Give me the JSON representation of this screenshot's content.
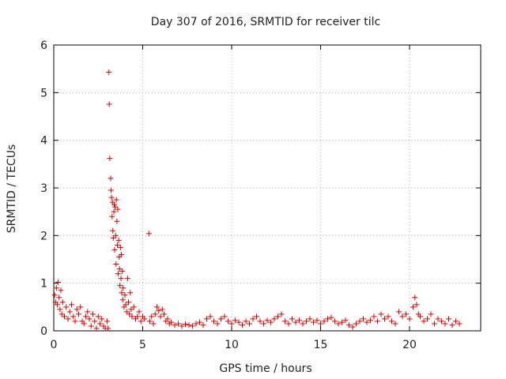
{
  "chart_data": {
    "type": "scatter",
    "title": "Day 307 of 2016, SRMTID for receiver tilc",
    "xlabel": "GPS time / hours",
    "ylabel": "SRMTID / TECUs",
    "xlim": [
      0,
      24
    ],
    "ylim": [
      0,
      6
    ],
    "xticks": [
      0,
      5,
      10,
      15,
      20
    ],
    "yticks": [
      0,
      1,
      2,
      3,
      4,
      5,
      6
    ],
    "grid": true,
    "marker": "+",
    "marker_color": "#dd0000",
    "series": [
      {
        "name": "tilc",
        "points": [
          [
            0.05,
            0.75
          ],
          [
            0.1,
            0.6
          ],
          [
            0.15,
            0.9
          ],
          [
            0.2,
            0.55
          ],
          [
            0.25,
            1.02
          ],
          [
            0.3,
            0.7
          ],
          [
            0.35,
            0.45
          ],
          [
            0.4,
            0.85
          ],
          [
            0.45,
            0.35
          ],
          [
            0.5,
            0.6
          ],
          [
            0.6,
            0.3
          ],
          [
            0.7,
            0.5
          ],
          [
            0.8,
            0.25
          ],
          [
            0.9,
            0.4
          ],
          [
            1.0,
            0.55
          ],
          [
            1.1,
            0.3
          ],
          [
            1.2,
            0.2
          ],
          [
            1.3,
            0.45
          ],
          [
            1.4,
            0.35
          ],
          [
            1.5,
            0.5
          ],
          [
            1.6,
            0.2
          ],
          [
            1.7,
            0.15
          ],
          [
            1.8,
            0.3
          ],
          [
            1.9,
            0.4
          ],
          [
            2.0,
            0.25
          ],
          [
            2.1,
            0.1
          ],
          [
            2.2,
            0.35
          ],
          [
            2.3,
            0.2
          ],
          [
            2.4,
            0.05
          ],
          [
            2.5,
            0.3
          ],
          [
            2.6,
            0.15
          ],
          [
            2.7,
            0.25
          ],
          [
            2.8,
            0.1
          ],
          [
            2.9,
            0.05
          ],
          [
            3.0,
            0.2
          ],
          [
            3.05,
            0.05
          ],
          [
            3.1,
            5.43
          ],
          [
            3.12,
            4.76
          ],
          [
            3.15,
            3.62
          ],
          [
            3.2,
            3.2
          ],
          [
            3.22,
            2.95
          ],
          [
            3.25,
            2.8
          ],
          [
            3.28,
            2.4
          ],
          [
            3.3,
            2.7
          ],
          [
            3.32,
            2.1
          ],
          [
            3.35,
            1.95
          ],
          [
            3.38,
            2.5
          ],
          [
            3.4,
            2.65
          ],
          [
            3.42,
            1.7
          ],
          [
            3.45,
            2.6
          ],
          [
            3.48,
            2.0
          ],
          [
            3.5,
            1.4
          ],
          [
            3.52,
            2.75
          ],
          [
            3.55,
            2.3
          ],
          [
            3.58,
            1.8
          ],
          [
            3.6,
            2.55
          ],
          [
            3.62,
            1.2
          ],
          [
            3.65,
            1.9
          ],
          [
            3.68,
            1.55
          ],
          [
            3.7,
            1.3
          ],
          [
            3.72,
            0.95
          ],
          [
            3.75,
            1.75
          ],
          [
            3.78,
            1.1
          ],
          [
            3.8,
            1.6
          ],
          [
            3.82,
            0.8
          ],
          [
            3.85,
            1.25
          ],
          [
            3.88,
            0.65
          ],
          [
            3.9,
            0.9
          ],
          [
            3.95,
            0.5
          ],
          [
            4.0,
            0.75
          ],
          [
            4.05,
            0.55
          ],
          [
            4.1,
            0.4
          ],
          [
            4.15,
            1.1
          ],
          [
            4.2,
            0.6
          ],
          [
            4.25,
            0.35
          ],
          [
            4.3,
            0.8
          ],
          [
            4.35,
            0.45
          ],
          [
            4.4,
            0.3
          ],
          [
            4.5,
            0.5
          ],
          [
            4.6,
            0.25
          ],
          [
            4.7,
            0.3
          ],
          [
            4.8,
            0.4
          ],
          [
            4.9,
            0.2
          ],
          [
            5.0,
            0.3
          ],
          [
            5.1,
            0.25
          ],
          [
            5.35,
            2.04
          ],
          [
            5.4,
            0.2
          ],
          [
            5.5,
            0.3
          ],
          [
            5.6,
            0.15
          ],
          [
            5.7,
            0.35
          ],
          [
            5.8,
            0.5
          ],
          [
            5.9,
            0.42
          ],
          [
            6.0,
            0.3
          ],
          [
            6.1,
            0.45
          ],
          [
            6.2,
            0.35
          ],
          [
            6.3,
            0.2
          ],
          [
            6.4,
            0.25
          ],
          [
            6.5,
            0.15
          ],
          [
            6.6,
            0.18
          ],
          [
            6.8,
            0.12
          ],
          [
            7.0,
            0.15
          ],
          [
            7.2,
            0.1
          ],
          [
            7.4,
            0.14
          ],
          [
            7.6,
            0.12
          ],
          [
            7.8,
            0.1
          ],
          [
            8.0,
            0.15
          ],
          [
            8.2,
            0.18
          ],
          [
            8.4,
            0.12
          ],
          [
            8.6,
            0.25
          ],
          [
            8.8,
            0.3
          ],
          [
            9.0,
            0.2
          ],
          [
            9.2,
            0.15
          ],
          [
            9.4,
            0.25
          ],
          [
            9.6,
            0.3
          ],
          [
            9.8,
            0.2
          ],
          [
            10.0,
            0.15
          ],
          [
            10.2,
            0.22
          ],
          [
            10.4,
            0.18
          ],
          [
            10.6,
            0.12
          ],
          [
            10.8,
            0.2
          ],
          [
            11.0,
            0.15
          ],
          [
            11.2,
            0.25
          ],
          [
            11.4,
            0.3
          ],
          [
            11.6,
            0.2
          ],
          [
            11.8,
            0.15
          ],
          [
            12.0,
            0.22
          ],
          [
            12.2,
            0.18
          ],
          [
            12.4,
            0.25
          ],
          [
            12.6,
            0.3
          ],
          [
            12.8,
            0.35
          ],
          [
            13.0,
            0.2
          ],
          [
            13.2,
            0.15
          ],
          [
            13.4,
            0.25
          ],
          [
            13.6,
            0.18
          ],
          [
            13.8,
            0.22
          ],
          [
            14.0,
            0.15
          ],
          [
            14.2,
            0.2
          ],
          [
            14.4,
            0.25
          ],
          [
            14.6,
            0.18
          ],
          [
            14.8,
            0.22
          ],
          [
            15.0,
            0.15
          ],
          [
            15.2,
            0.2
          ],
          [
            15.4,
            0.25
          ],
          [
            15.6,
            0.28
          ],
          [
            15.8,
            0.2
          ],
          [
            16.0,
            0.15
          ],
          [
            16.2,
            0.18
          ],
          [
            16.4,
            0.22
          ],
          [
            16.6,
            0.12
          ],
          [
            16.8,
            0.08
          ],
          [
            17.0,
            0.15
          ],
          [
            17.2,
            0.2
          ],
          [
            17.4,
            0.25
          ],
          [
            17.6,
            0.18
          ],
          [
            17.8,
            0.22
          ],
          [
            18.0,
            0.3
          ],
          [
            18.2,
            0.2
          ],
          [
            18.4,
            0.35
          ],
          [
            18.6,
            0.25
          ],
          [
            18.8,
            0.3
          ],
          [
            19.0,
            0.2
          ],
          [
            19.2,
            0.15
          ],
          [
            19.4,
            0.4
          ],
          [
            19.6,
            0.3
          ],
          [
            19.8,
            0.35
          ],
          [
            20.0,
            0.25
          ],
          [
            20.2,
            0.5
          ],
          [
            20.3,
            0.7
          ],
          [
            20.4,
            0.55
          ],
          [
            20.5,
            0.35
          ],
          [
            20.6,
            0.3
          ],
          [
            20.8,
            0.2
          ],
          [
            21.0,
            0.25
          ],
          [
            21.2,
            0.35
          ],
          [
            21.4,
            0.15
          ],
          [
            21.6,
            0.25
          ],
          [
            21.8,
            0.2
          ],
          [
            22.0,
            0.15
          ],
          [
            22.2,
            0.25
          ],
          [
            22.4,
            0.12
          ],
          [
            22.6,
            0.2
          ],
          [
            22.8,
            0.15
          ]
        ]
      }
    ]
  }
}
